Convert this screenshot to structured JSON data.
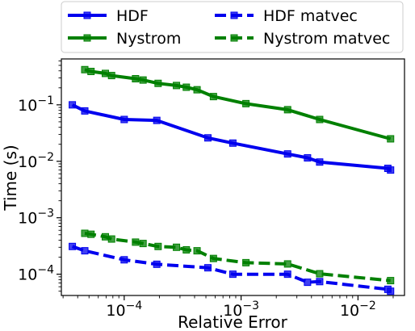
{
  "chart_data": {
    "type": "line",
    "xlabel": "Relative Error",
    "ylabel": "Time (s)",
    "xscale": "log",
    "yscale": "log",
    "xlim": [
      2.9e-05,
      0.025
    ],
    "ylim": [
      4.2e-05,
      0.65
    ],
    "grid": false,
    "legend_position": "top (above plot), 2 columns",
    "x_tick_labels": [
      "10^-4",
      "10^-3",
      "10^-2"
    ],
    "y_tick_labels": [
      "10^-4",
      "10^-3",
      "10^-2",
      "10^-1"
    ],
    "series": [
      {
        "name": "HDF",
        "color": "#0000ee",
        "linestyle": "solid",
        "marker": "square",
        "x": [
          3.6e-05,
          4.6e-05,
          0.0001,
          0.00019,
          0.00052,
          0.00085,
          0.0025,
          0.0037,
          0.0047,
          0.018,
          0.019
        ],
        "y": [
          0.1,
          0.078,
          0.055,
          0.053,
          0.026,
          0.021,
          0.0135,
          0.0115,
          0.0097,
          0.0075,
          0.007
        ]
      },
      {
        "name": "Nystrom",
        "color": "#008000",
        "linestyle": "solid",
        "marker": "square",
        "x": [
          4.6e-05,
          5.2e-05,
          6.9e-05,
          7.8e-05,
          0.000125,
          0.000145,
          0.000195,
          0.00028,
          0.00034,
          0.00042,
          0.00058,
          0.0011,
          0.0025,
          0.0047,
          0.019
        ],
        "y": [
          0.42,
          0.39,
          0.36,
          0.33,
          0.29,
          0.275,
          0.24,
          0.22,
          0.205,
          0.185,
          0.14,
          0.105,
          0.082,
          0.055,
          0.025
        ]
      },
      {
        "name": "HDF matvec",
        "color": "#0000ee",
        "linestyle": "dashed",
        "marker": "square",
        "x": [
          3.6e-05,
          4.6e-05,
          0.0001,
          0.00019,
          0.00052,
          0.00085,
          0.0025,
          0.0037,
          0.0047,
          0.018,
          0.019
        ],
        "y": [
          0.00031,
          0.00026,
          0.00018,
          0.00015,
          0.00013,
          0.0001,
          0.0001,
          7.2e-05,
          7.4e-05,
          5.4e-05,
          5e-05
        ]
      },
      {
        "name": "Nystrom matvec",
        "color": "#008000",
        "linestyle": "dashed",
        "marker": "square",
        "x": [
          4.6e-05,
          5.2e-05,
          6.9e-05,
          7.8e-05,
          0.000125,
          0.000145,
          0.000195,
          0.00028,
          0.00034,
          0.00042,
          0.00058,
          0.0011,
          0.0025,
          0.0047,
          0.019
        ],
        "y": [
          0.00053,
          0.00051,
          0.00046,
          0.00042,
          0.00037,
          0.00035,
          0.00031,
          0.0003,
          0.00027,
          0.00026,
          0.00019,
          0.00016,
          0.000152,
          0.000102,
          7.7e-05
        ]
      }
    ]
  }
}
